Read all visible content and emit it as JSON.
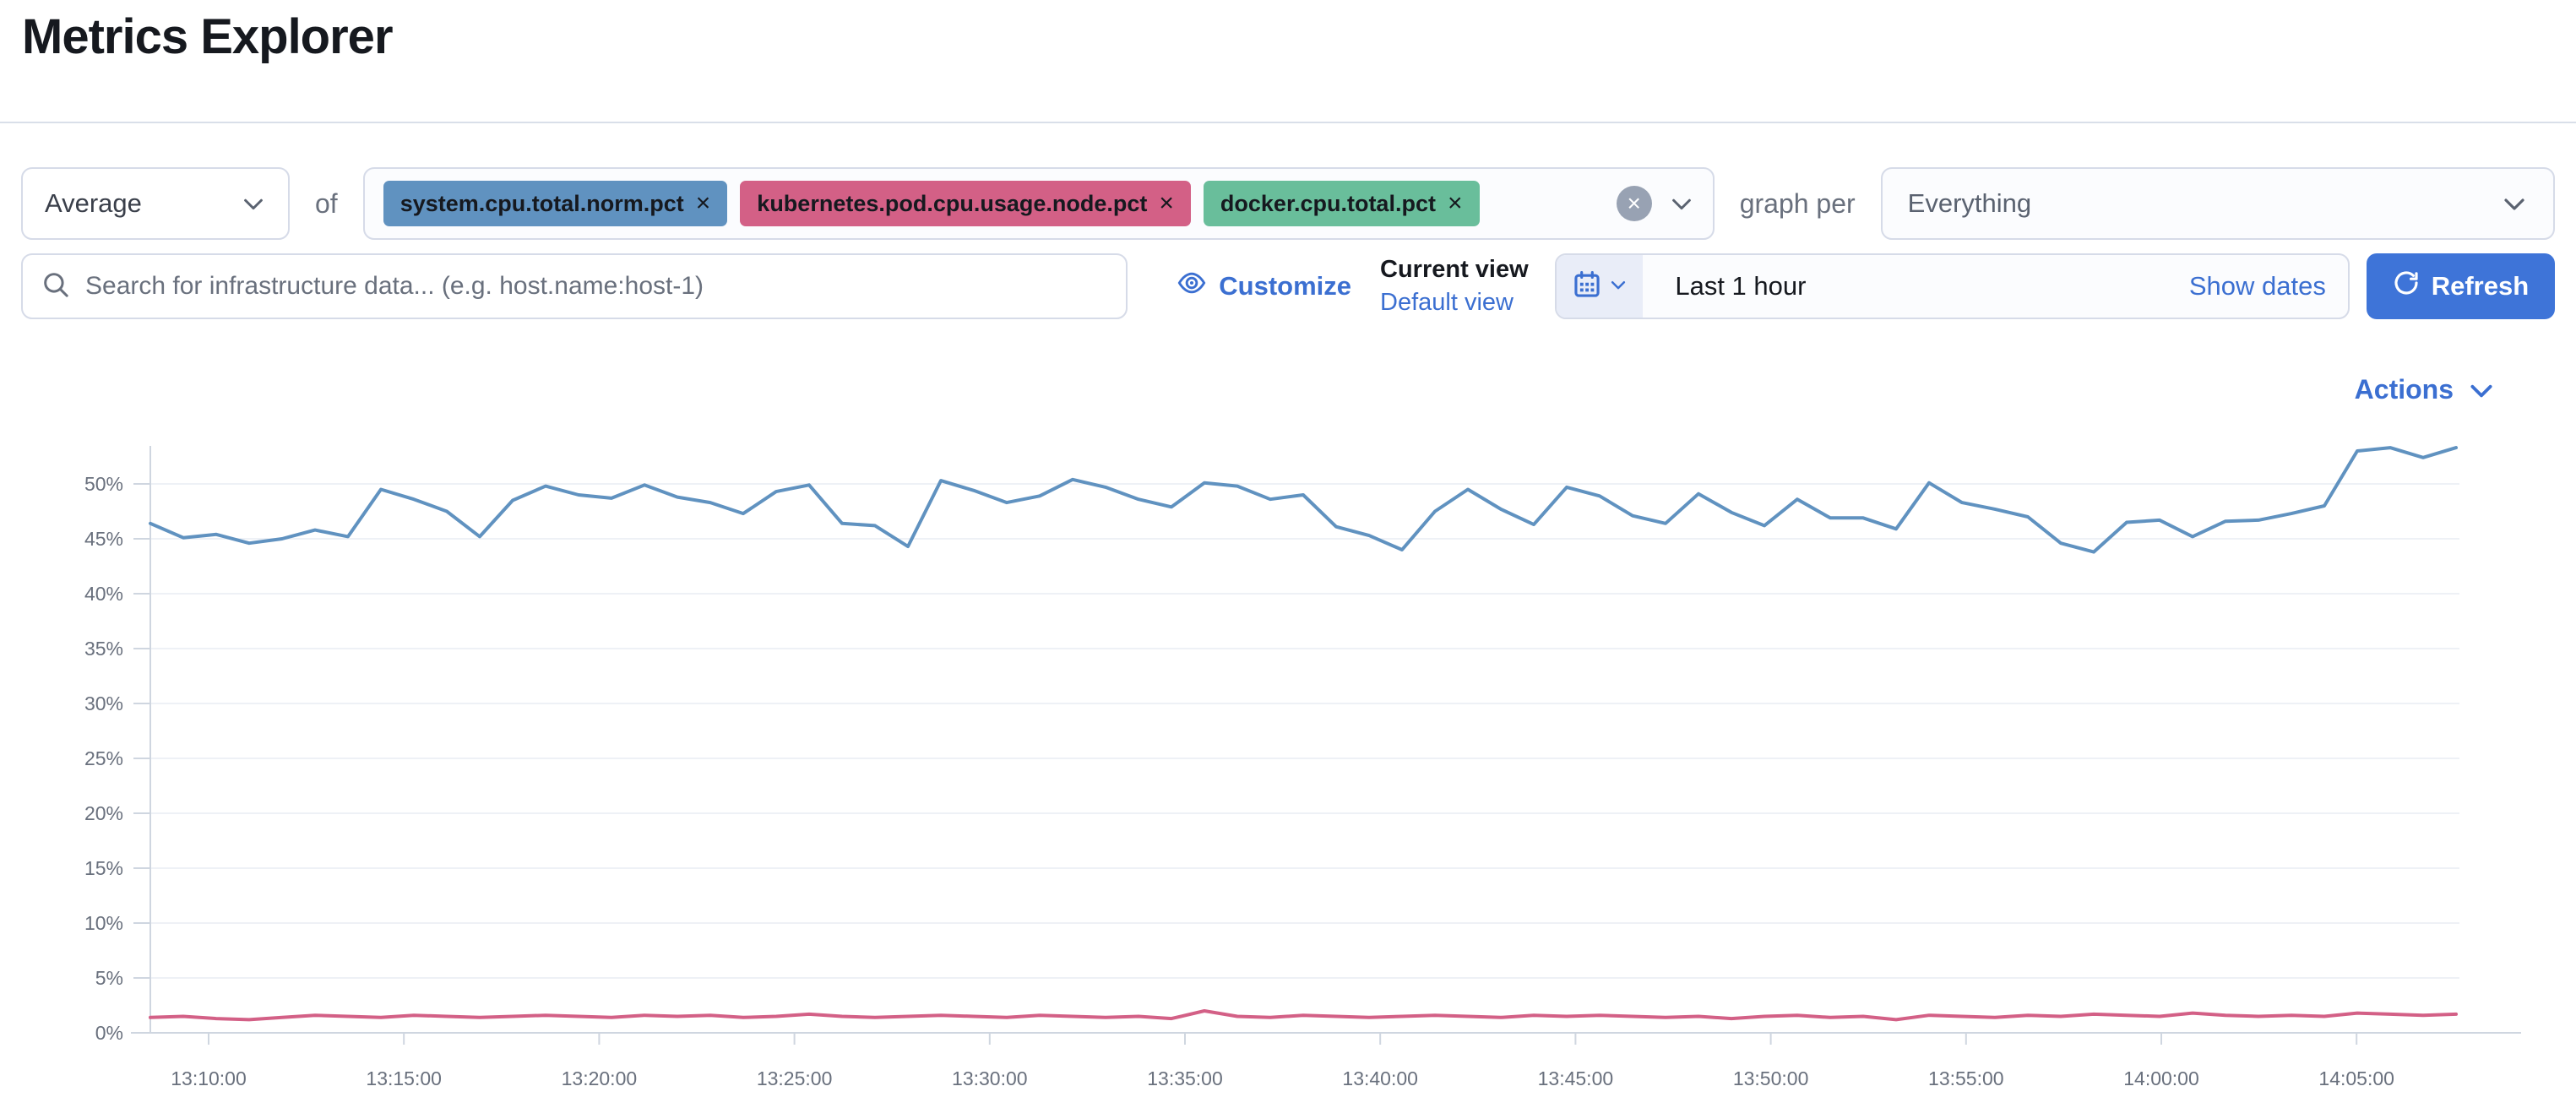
{
  "page": {
    "title": "Metrics Explorer"
  },
  "toolbar": {
    "aggregation": {
      "value": "Average"
    },
    "of_label": "of",
    "metrics": [
      {
        "label": "system.cpu.total.norm.pct",
        "color": "#6092C0",
        "remove_label": "×"
      },
      {
        "label": "kubernetes.pod.cpu.usage.node.pct",
        "color": "#D36086",
        "remove_label": "×"
      },
      {
        "label": "docker.cpu.total.pct",
        "color": "#69BE9B",
        "remove_label": "×"
      }
    ],
    "clear_label": "×",
    "graph_per_label": "graph per",
    "group_by": {
      "value": "Everything"
    }
  },
  "search": {
    "placeholder": "Search for infrastructure data... (e.g. host.name:host-1)"
  },
  "view_controls": {
    "customize_label": "Customize",
    "current_view_label": "Current view",
    "default_view_label": "Default view"
  },
  "time_picker": {
    "range_label": "Last 1 hour",
    "show_dates_label": "Show dates",
    "refresh_label": "Refresh"
  },
  "actions": {
    "label": "Actions"
  },
  "colors": {
    "link_blue": "#3b6fd1",
    "button_blue": "#3e74d8",
    "border_gray": "#d6dbe8",
    "text_gray": "#69707d",
    "grid_gray": "#eef1f6",
    "axis_gray": "#cfd6e0"
  },
  "chart_data": {
    "type": "line",
    "title": "",
    "xlabel": "",
    "ylabel": "",
    "ylim": [
      0,
      53.5
    ],
    "grid": "horizontal",
    "legend": "none",
    "y_ticks": [
      "0%",
      "5%",
      "10%",
      "15%",
      "20%",
      "25%",
      "30%",
      "35%",
      "40%",
      "45%",
      "50%"
    ],
    "x_ticks": [
      "13:10:00",
      "13:15:00",
      "13:20:00",
      "13:25:00",
      "13:30:00",
      "13:35:00",
      "13:40:00",
      "13:45:00",
      "13:50:00",
      "13:55:00",
      "14:00:00",
      "14:05:00"
    ],
    "series": [
      {
        "name": "system.cpu.total.norm.pct",
        "color": "#6092C0",
        "values": [
          46.4,
          45.1,
          45.4,
          44.6,
          45.0,
          45.8,
          45.2,
          49.5,
          48.6,
          47.5,
          45.2,
          48.5,
          49.8,
          49.0,
          48.7,
          49.9,
          48.8,
          48.3,
          47.3,
          49.3,
          49.9,
          46.4,
          46.2,
          44.3,
          50.3,
          49.4,
          48.3,
          48.9,
          50.4,
          49.7,
          48.6,
          47.9,
          50.1,
          49.8,
          48.6,
          49.0,
          46.1,
          45.3,
          44.0,
          47.5,
          49.5,
          47.7,
          46.3,
          49.7,
          48.9,
          47.1,
          46.4,
          49.1,
          47.4,
          46.2,
          48.6,
          46.9,
          46.9,
          45.9,
          50.1,
          48.3,
          47.7,
          47.0,
          44.6,
          43.8,
          46.5,
          46.7,
          45.2,
          46.6,
          46.7,
          47.3,
          48.0,
          53.0,
          53.3,
          52.4,
          53.3
        ]
      },
      {
        "name": "kubernetes.pod.cpu.usage.node.pct",
        "color": "#D36086",
        "values": [
          1.4,
          1.5,
          1.3,
          1.2,
          1.4,
          1.6,
          1.5,
          1.4,
          1.6,
          1.5,
          1.4,
          1.5,
          1.6,
          1.5,
          1.4,
          1.6,
          1.5,
          1.6,
          1.4,
          1.5,
          1.7,
          1.5,
          1.4,
          1.5,
          1.6,
          1.5,
          1.4,
          1.6,
          1.5,
          1.4,
          1.5,
          1.3,
          2.0,
          1.5,
          1.4,
          1.6,
          1.5,
          1.4,
          1.5,
          1.6,
          1.5,
          1.4,
          1.6,
          1.5,
          1.6,
          1.5,
          1.4,
          1.5,
          1.3,
          1.5,
          1.6,
          1.4,
          1.5,
          1.2,
          1.6,
          1.5,
          1.4,
          1.6,
          1.5,
          1.7,
          1.6,
          1.5,
          1.8,
          1.6,
          1.5,
          1.6,
          1.5,
          1.8,
          1.7,
          1.6,
          1.7
        ]
      }
    ]
  }
}
